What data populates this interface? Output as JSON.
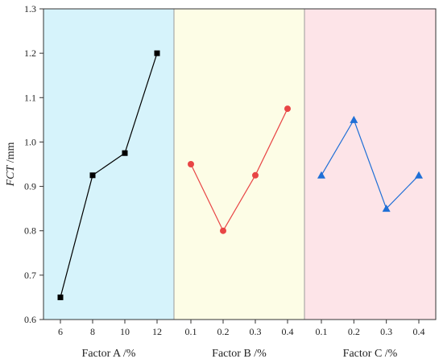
{
  "chart_data": {
    "type": "line",
    "ylabel_italic": "FCT",
    "ylabel_unit": " /mm",
    "ylim": [
      0.6,
      1.3
    ],
    "yticks": [
      0.6,
      0.7,
      0.8,
      0.9,
      1.0,
      1.1,
      1.2,
      1.3
    ],
    "ytick_labels": [
      "0.6",
      "0.7",
      "0.8",
      "0.9",
      "1.0",
      "1.1",
      "1.2",
      "1.3"
    ],
    "grid": false,
    "panels": [
      {
        "xlabel": "Factor A /%",
        "background": "#d6f3fb",
        "color": "#000000",
        "marker": "square",
        "x": [
          "6",
          "8",
          "10",
          "12"
        ],
        "values": [
          0.65,
          0.925,
          0.975,
          1.2
        ]
      },
      {
        "xlabel": "Factor B /%",
        "background": "#fdfde6",
        "color": "#e84545",
        "marker": "circle",
        "x": [
          "0.1",
          "0.2",
          "0.3",
          "0.4"
        ],
        "values": [
          0.95,
          0.8,
          0.925,
          1.075
        ]
      },
      {
        "xlabel": "Factor C /%",
        "background": "#fde4e8",
        "color": "#1f6fd6",
        "marker": "triangle",
        "x": [
          "0.1",
          "0.2",
          "0.3",
          "0.4"
        ],
        "values": [
          0.925,
          1.05,
          0.85,
          0.925
        ]
      }
    ]
  }
}
